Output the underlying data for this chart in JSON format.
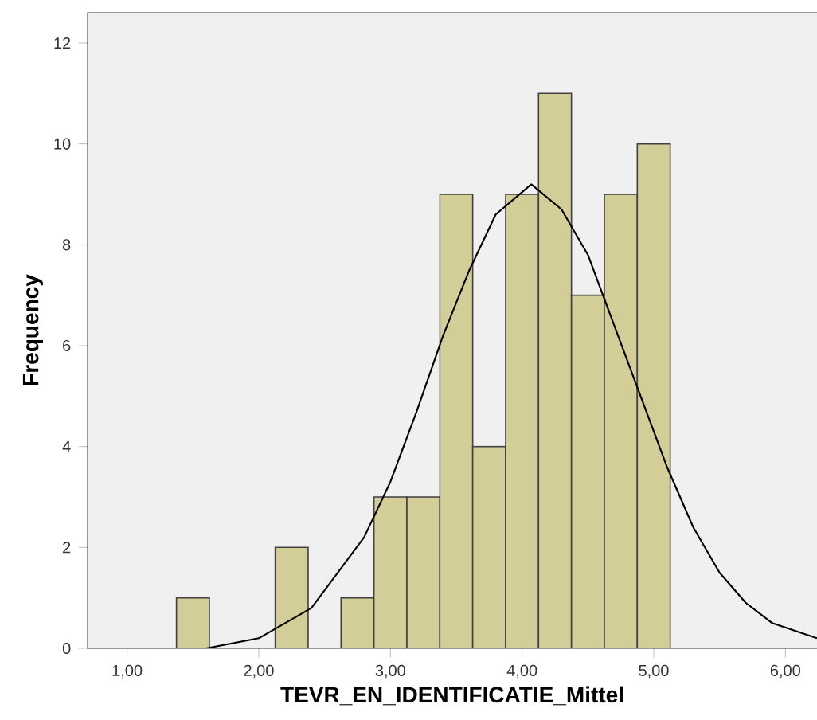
{
  "chart_data": {
    "type": "histogram",
    "xlabel": "TEVR_EN_IDENTIFICATIE_Mittel",
    "ylabel": "Frequency",
    "bins": [
      1.375,
      1.625,
      1.875,
      2.125,
      2.375,
      2.625,
      2.875,
      3.125,
      3.375,
      3.625,
      3.875,
      4.125,
      4.375,
      4.625,
      4.875,
      5.125
    ],
    "values": [
      1,
      0,
      0,
      2,
      0,
      1,
      3,
      3,
      9,
      4,
      9,
      11,
      7,
      9,
      10
    ],
    "color": "#d3ce98",
    "series": [
      {
        "type": "line",
        "color": "#000000",
        "x": [
          0.8,
          1.2,
          1.6,
          2.0,
          2.4,
          2.8,
          3.0,
          3.2,
          3.4,
          3.6,
          3.8,
          4.07,
          4.3,
          4.5,
          4.7,
          4.9,
          5.1,
          5.3,
          5.5,
          5.7,
          5.9,
          6.24
        ],
        "values": [
          0.0,
          0.0,
          0.0,
          0.2,
          0.8,
          2.2,
          3.3,
          4.7,
          6.2,
          7.5,
          8.6,
          9.2,
          8.7,
          7.8,
          6.4,
          5.0,
          3.6,
          2.4,
          1.5,
          0.9,
          0.5,
          0.2
        ]
      }
    ],
    "xlim": [
      0.7,
      6.24
    ],
    "ylim": [
      0,
      12.6
    ],
    "xticks": [
      {
        "value": 1,
        "label": "1,00"
      },
      {
        "value": 2,
        "label": "2,00"
      },
      {
        "value": 3,
        "label": "3,00"
      },
      {
        "value": 4,
        "label": "4,00"
      },
      {
        "value": 5,
        "label": "5,00"
      },
      {
        "value": 6,
        "label": "6,00"
      }
    ],
    "yticks": [
      0,
      2,
      4,
      6,
      8,
      10,
      12
    ]
  }
}
